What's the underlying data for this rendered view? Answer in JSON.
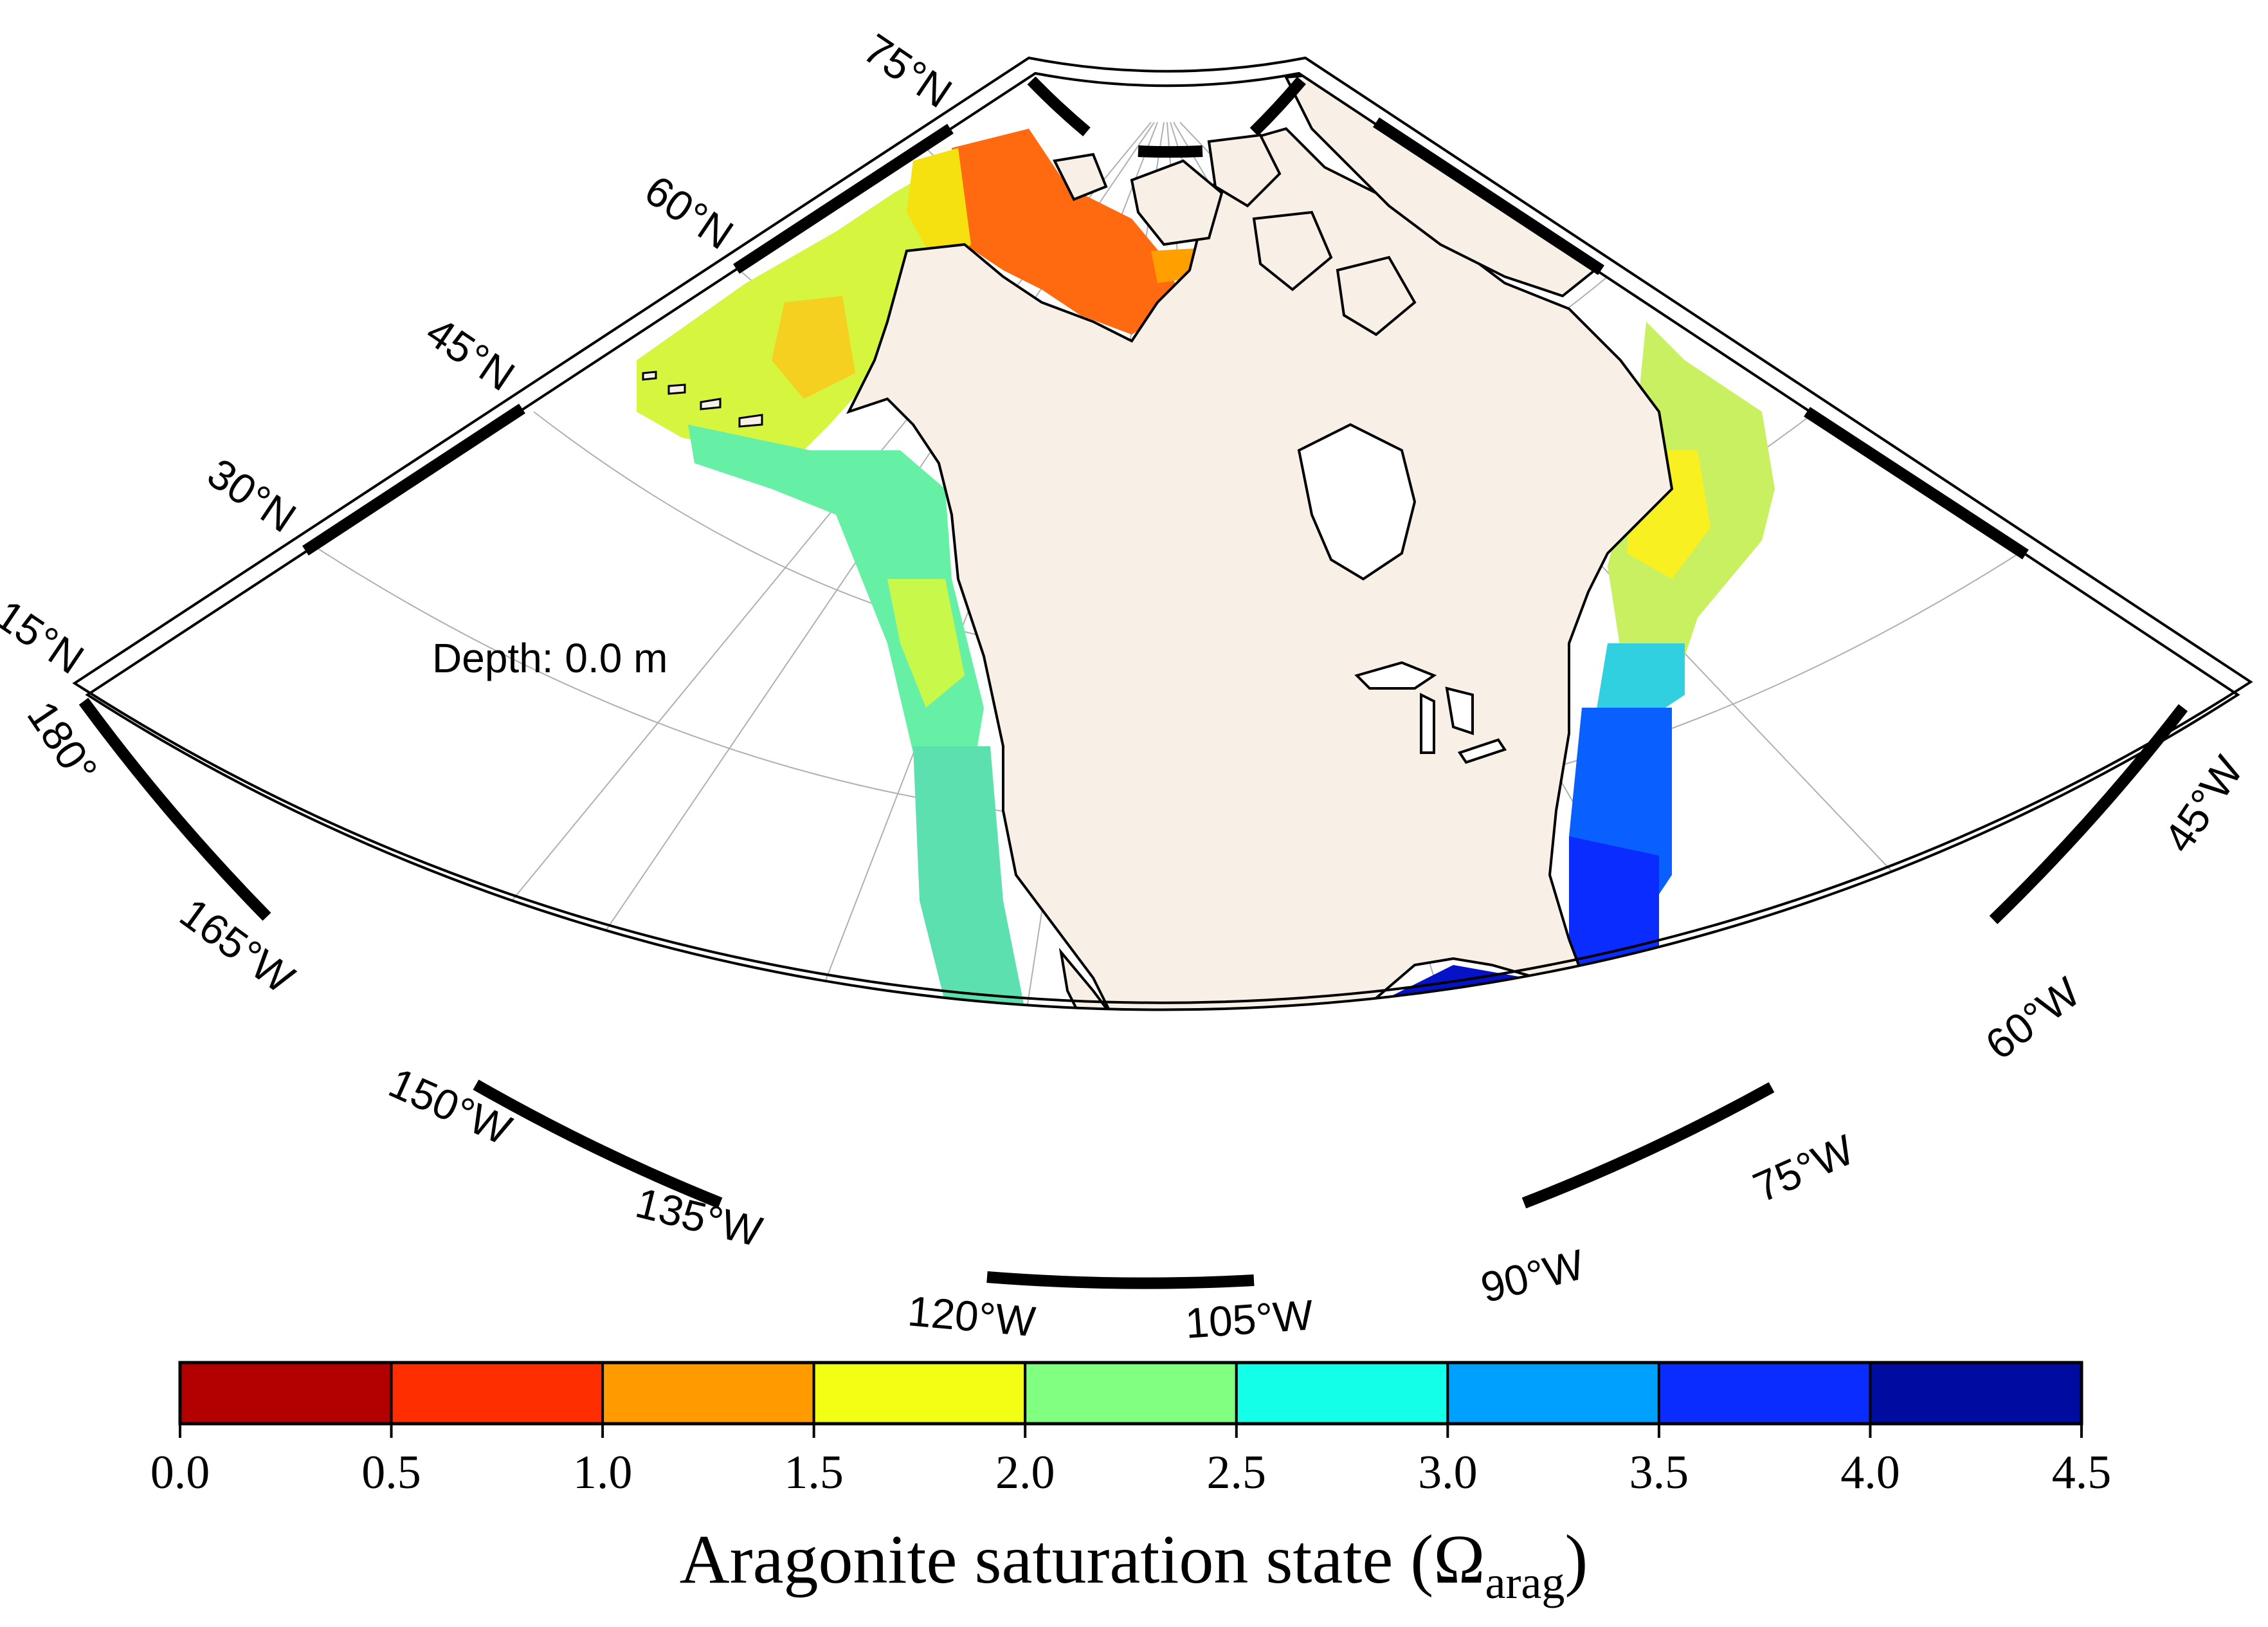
{
  "map": {
    "depth_label": "Depth: 0.0 m",
    "latitude_labels": [
      "15°N",
      "30°N",
      "45°N",
      "60°N",
      "75°N"
    ],
    "longitude_labels": [
      "180°",
      "165°W",
      "150°W",
      "135°W",
      "120°W",
      "105°W",
      "90°W",
      "75°W",
      "60°W",
      "45°W"
    ],
    "land_color": "#f8efe6",
    "coastline_color": "#000000",
    "graticule_color": "#b0b0b0"
  },
  "colorbar": {
    "title_main": "Aragonite saturation state (Ω",
    "title_sub": "arag",
    "title_close": ")",
    "tick_labels": [
      "0.0",
      "0.5",
      "1.0",
      "1.5",
      "2.0",
      "2.5",
      "3.0",
      "3.5",
      "4.0",
      "4.5"
    ],
    "bins": [
      {
        "min": 0.0,
        "max": 0.5,
        "color": "#b30000"
      },
      {
        "min": 0.5,
        "max": 1.0,
        "color": "#ff2e00"
      },
      {
        "min": 1.0,
        "max": 1.5,
        "color": "#ff9a00"
      },
      {
        "min": 1.5,
        "max": 2.0,
        "color": "#f2ff14"
      },
      {
        "min": 2.0,
        "max": 2.5,
        "color": "#80ff80"
      },
      {
        "min": 2.5,
        "max": 3.0,
        "color": "#14ffe8"
      },
      {
        "min": 3.0,
        "max": 3.5,
        "color": "#00a0ff"
      },
      {
        "min": 3.5,
        "max": 4.0,
        "color": "#0a2cff"
      },
      {
        "min": 4.0,
        "max": 4.5,
        "color": "#000ca0"
      }
    ]
  }
}
